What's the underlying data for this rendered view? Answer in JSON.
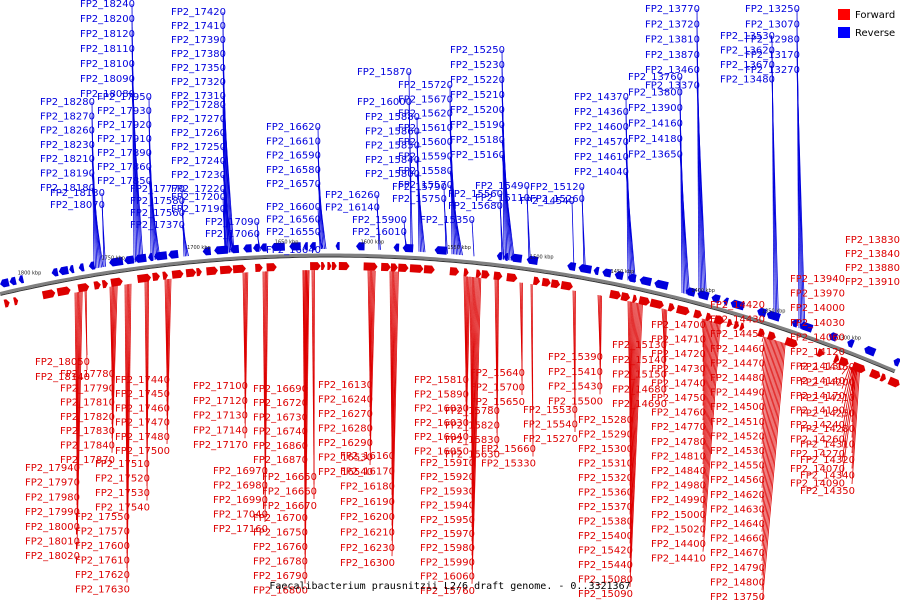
{
  "caption": "Faecalibacterium prausnitzii L2/6 draft genome. - 0..3321367",
  "legend": [
    {
      "label": "Forward",
      "color": "#ff0000"
    },
    {
      "label": "Reverse",
      "color": "#0000ff"
    }
  ],
  "colors": {
    "forward": "#dd0000",
    "reverse": "#0000dd",
    "backbone": "#808080"
  },
  "axis": {
    "ticks": [
      "1800 kbp",
      "1750 kbp",
      "1700 kbp",
      "1650 kbp",
      "1600 kbp",
      "1550 kbp",
      "1500 kbp",
      "1450 kbp",
      "1400 kbp",
      "1350 kbp",
      "1300 kbp"
    ]
  },
  "reverse_labels": [
    "FP2_18240",
    "FP2_18200",
    "FP2_18120",
    "FP2_18110",
    "FP2_18100",
    "FP2_18090",
    "FP2_18080",
    "FP2_18280",
    "FP2_18270",
    "FP2_18260",
    "FP2_18230",
    "FP2_18210",
    "FP2_18190",
    "FP2_18180",
    "FP2_18130",
    "FP2_18070",
    "FP2_17420",
    "FP2_17410",
    "FP2_17390",
    "FP2_17380",
    "FP2_17350",
    "FP2_17320",
    "FP2_17310",
    "FP2_17280",
    "FP2_17270",
    "FP2_17260",
    "FP2_17250",
    "FP2_17240",
    "FP2_17230",
    "FP2_17220",
    "FP2_17200",
    "FP2_17190",
    "FP2_17950",
    "FP2_17930",
    "FP2_17920",
    "FP2_17910",
    "FP2_17890",
    "FP2_17860",
    "FP2_17850",
    "FP2_17770",
    "FP2_17580",
    "FP2_17560",
    "FP2_17370",
    "FP2_17090",
    "FP2_17060",
    "FP2_16620",
    "FP2_16610",
    "FP2_16590",
    "FP2_16580",
    "FP2_16570",
    "FP2_16600",
    "FP2_16560",
    "FP2_16550",
    "FP2_16640",
    "FP2_16260",
    "FP2_16140",
    "FP2_15870",
    "FP2_16000",
    "FP2_15880",
    "FP2_15860",
    "FP2_15850",
    "FP2_15840",
    "FP2_15800",
    "FP2_15790",
    "FP2_15750",
    "FP2_15900",
    "FP2_16010",
    "FP2_15720",
    "FP2_15670",
    "FP2_15620",
    "FP2_15610",
    "FP2_15600",
    "FP2_15590",
    "FP2_15580",
    "FP2_15570",
    "FP2_15560",
    "FP2_15680",
    "FP2_15350",
    "FP2_15250",
    "FP2_15230",
    "FP2_15220",
    "FP2_15210",
    "FP2_15200",
    "FP2_15190",
    "FP2_15180",
    "FP2_15160",
    "FP2_15490",
    "FP2_15110",
    "FP2_15120",
    "FP2_15260",
    "FP2_14540",
    "FP2_14370",
    "FP2_14360",
    "FP2_14600",
    "FP2_14570",
    "FP2_14610",
    "FP2_14040",
    "FP2_13760",
    "FP2_13800",
    "FP2_13900",
    "FP2_14160",
    "FP2_14180",
    "FP2_13650",
    "FP2_13770",
    "FP2_13720",
    "FP2_13810",
    "FP2_13870",
    "FP2_13460",
    "FP2_13370",
    "FP2_13530",
    "FP2_13620",
    "FP2_13670",
    "FP2_13480",
    "FP2_13250",
    "FP2_13070",
    "FP2_12980",
    "FP2_13170",
    "FP2_13270"
  ],
  "forward_labels": [
    "FP2_18050",
    "FP2_18140",
    "FP2_17780",
    "FP2_17790",
    "FP2_17810",
    "FP2_17820",
    "FP2_17830",
    "FP2_17840",
    "FP2_17870",
    "FP2_17940",
    "FP2_17970",
    "FP2_17980",
    "FP2_17990",
    "FP2_18000",
    "FP2_18010",
    "FP2_18020",
    "FP2_17440",
    "FP2_17450",
    "FP2_17460",
    "FP2_17470",
    "FP2_17480",
    "FP2_17500",
    "FP2_17510",
    "FP2_17520",
    "FP2_17530",
    "FP2_17540",
    "FP2_17550",
    "FP2_17570",
    "FP2_17600",
    "FP2_17610",
    "FP2_17620",
    "FP2_17630",
    "FP2_17100",
    "FP2_17120",
    "FP2_17130",
    "FP2_17140",
    "FP2_17170",
    "FP2_16970",
    "FP2_16980",
    "FP2_16990",
    "FP2_17040",
    "FP2_17160",
    "FP2_16690",
    "FP2_16720",
    "FP2_16730",
    "FP2_16740",
    "FP2_16860",
    "FP2_16870",
    "FP2_16650",
    "FP2_16660",
    "FP2_16670",
    "FP2_16700",
    "FP2_16750",
    "FP2_16760",
    "FP2_16780",
    "FP2_16790",
    "FP2_16800",
    "FP2_16130",
    "FP2_16240",
    "FP2_16270",
    "FP2_16280",
    "FP2_16290",
    "FP2_16530",
    "FP2_16540",
    "FP2_16160",
    "FP2_16170",
    "FP2_16180",
    "FP2_16190",
    "FP2_16200",
    "FP2_16210",
    "FP2_16230",
    "FP2_16300",
    "FP2_15810",
    "FP2_15890",
    "FP2_16020",
    "FP2_16030",
    "FP2_16040",
    "FP2_16050",
    "FP2_15910",
    "FP2_15920",
    "FP2_15930",
    "FP2_15940",
    "FP2_15950",
    "FP2_15970",
    "FP2_15980",
    "FP2_15990",
    "FP2_16060",
    "FP2_15760",
    "FP2_15780",
    "FP2_15820",
    "FP2_15830",
    "FP2_15630",
    "FP2_15640",
    "FP2_15700",
    "FP2_15650",
    "FP2_15660",
    "FP2_15330",
    "FP2_15390",
    "FP2_15410",
    "FP2_15430",
    "FP2_15500",
    "FP2_15530",
    "FP2_15540",
    "FP2_15270",
    "FP2_15280",
    "FP2_15290",
    "FP2_15300",
    "FP2_15310",
    "FP2_15320",
    "FP2_15360",
    "FP2_15370",
    "FP2_15380",
    "FP2_15400",
    "FP2_15420",
    "FP2_15440",
    "FP2_15080",
    "FP2_15090",
    "FP2_15130",
    "FP2_15140",
    "FP2_15150",
    "FP2_14680",
    "FP2_14690",
    "FP2_14700",
    "FP2_14710",
    "FP2_14720",
    "FP2_14730",
    "FP2_14740",
    "FP2_14750",
    "FP2_14760",
    "FP2_14770",
    "FP2_14780",
    "FP2_14810",
    "FP2_14840",
    "FP2_14980",
    "FP2_14990",
    "FP2_15000",
    "FP2_15020",
    "FP2_14400",
    "FP2_14410",
    "FP2_14420",
    "FP2_14430",
    "FP2_14450",
    "FP2_14460",
    "FP2_14470",
    "FP2_14480",
    "FP2_14490",
    "FP2_14500",
    "FP2_14510",
    "FP2_14520",
    "FP2_14530",
    "FP2_14550",
    "FP2_14560",
    "FP2_14620",
    "FP2_14630",
    "FP2_14640",
    "FP2_14660",
    "FP2_14670",
    "FP2_14790",
    "FP2_14800",
    "FP2_13750",
    "FP2_13780",
    "FP2_13830",
    "FP2_13840",
    "FP2_13880",
    "FP2_13910",
    "FP2_13940",
    "FP2_13970",
    "FP2_14000",
    "FP2_14030",
    "FP2_14060",
    "FP2_14120",
    "FP2_14130",
    "FP2_14140",
    "FP2_14170",
    "FP2_14190",
    "FP2_14240",
    "FP2_14260",
    "FP2_14270",
    "FP2_14070",
    "FP2_14090",
    "FP2_14150",
    "FP2_14200",
    "FP2_14210",
    "FP2_14250",
    "FP2_14280",
    "FP2_14310",
    "FP2_14320",
    "FP2_14340",
    "FP2_14350"
  ]
}
